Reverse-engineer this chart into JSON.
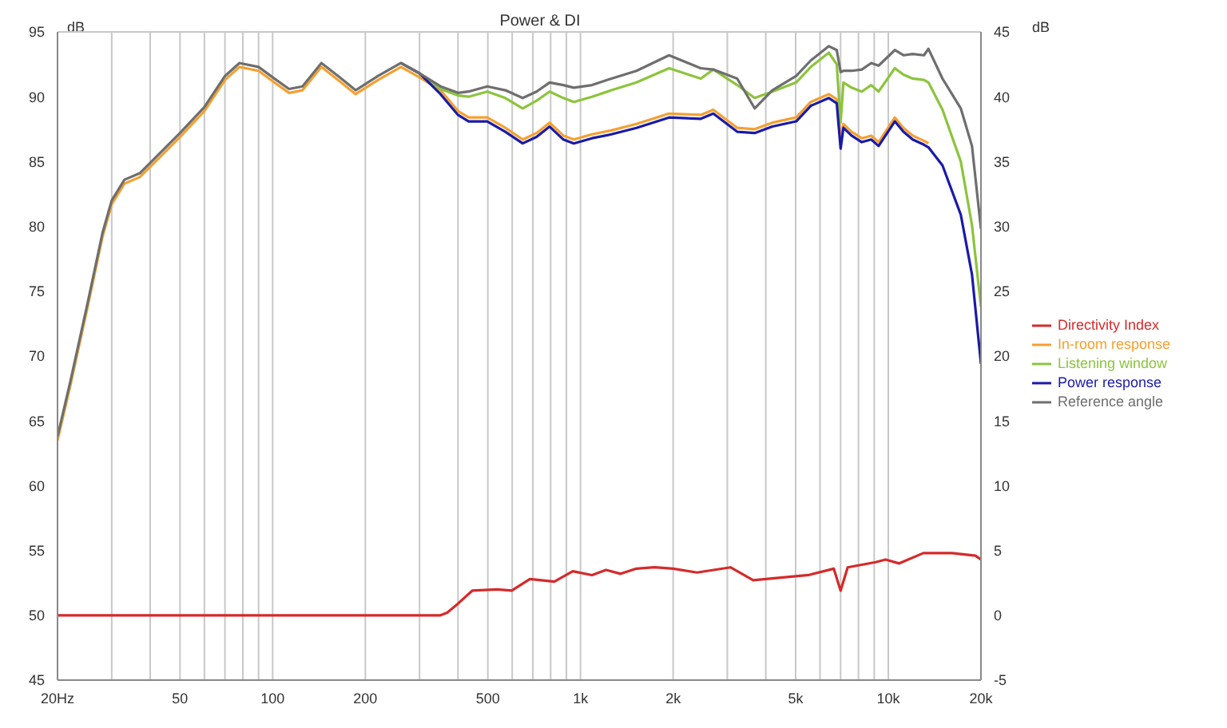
{
  "chart_data": {
    "type": "line",
    "title": "Power & DI",
    "ylabel": "dB",
    "y2label": "dB",
    "log": "x",
    "grid": true,
    "legend": "right",
    "marker": "none",
    "line_style": "solid",
    "xlim": [
      20,
      20000
    ],
    "ylim": [
      45,
      95
    ],
    "y2lim": [
      -5,
      45
    ],
    "xticks": [
      {
        "value": 20,
        "label": "20Hz"
      },
      {
        "value": 30,
        "label": null
      },
      {
        "value": 40,
        "label": null
      },
      50,
      {
        "value": 60,
        "label": null
      },
      {
        "value": 70,
        "label": null
      },
      {
        "value": 80,
        "label": null
      },
      {
        "value": 90,
        "label": null
      },
      100,
      200,
      {
        "value": 300,
        "label": null
      },
      {
        "value": 400,
        "label": null
      },
      500,
      {
        "value": 600,
        "label": null
      },
      {
        "value": 700,
        "label": null
      },
      {
        "value": 800,
        "label": null
      },
      {
        "value": 900,
        "label": null
      },
      {
        "value": 1000,
        "label": "1k"
      },
      {
        "value": 2000,
        "label": "2k"
      },
      {
        "value": 3000,
        "label": null
      },
      {
        "value": 4000,
        "label": null
      },
      {
        "value": 5000,
        "label": "5k"
      },
      {
        "value": 6000,
        "label": null
      },
      {
        "value": 7000,
        "label": null
      },
      {
        "value": 8000,
        "label": null
      },
      {
        "value": 9000,
        "label": null
      },
      {
        "value": 10000,
        "label": "10k"
      },
      {
        "value": 20000,
        "label": "20k"
      }
    ],
    "yticks": [
      45,
      50,
      55,
      60,
      65,
      70,
      75,
      80,
      85,
      90,
      95
    ],
    "y2ticks": [
      -5,
      0,
      5,
      10,
      15,
      20,
      25,
      30,
      35,
      40,
      45
    ],
    "x": [
      20,
      22,
      25,
      28,
      30,
      33,
      37,
      42,
      50,
      60,
      70,
      78,
      90,
      100,
      113,
      125,
      144,
      165,
      186,
      220,
      261,
      300,
      351,
      400,
      433,
      498,
      570,
      649,
      720,
      794,
      880,
      951,
      1090,
      1260,
      1520,
      1940,
      2460,
      2700,
      3230,
      3680,
      4200,
      5020,
      5600,
      6410,
      6800,
      7000,
      7150,
      7600,
      8200,
      8800,
      9300,
      10500,
      11200,
      12000,
      13060,
      13500,
      15000,
      17200,
      18700,
      20000
    ],
    "series": [
      {
        "name": "Directivity Index",
        "color": "#d42a2a",
        "axis": "y2",
        "x": [
          20,
          100,
          300,
          351,
          369,
          400,
          445,
          537,
          598,
          685,
          822,
          944,
          1090,
          1210,
          1350,
          1520,
          1740,
          2000,
          2390,
          3070,
          3640,
          4470,
          5500,
          6650,
          7000,
          7380,
          9100,
          9800,
          10850,
          13000,
          16100,
          19200,
          20000
        ],
        "values": [
          0,
          0,
          0,
          0,
          0.2,
          0.9,
          1.9,
          2.0,
          1.9,
          2.8,
          2.6,
          3.4,
          3.1,
          3.5,
          3.2,
          3.6,
          3.7,
          3.6,
          3.3,
          3.7,
          2.7,
          2.9,
          3.1,
          3.6,
          1.9,
          3.7,
          4.1,
          4.3,
          4.0,
          4.8,
          4.8,
          4.6,
          4.3
        ]
      },
      {
        "name": "In-room response",
        "color": "#f5a030",
        "values": [
          63.5,
          67.7,
          73.7,
          79.2,
          81.7,
          83.3,
          83.8,
          85.1,
          86.9,
          88.9,
          91.3,
          92.3,
          92.0,
          91.2,
          90.3,
          90.5,
          92.3,
          91.2,
          90.2,
          91.3,
          92.3,
          91.5,
          90.5,
          88.9,
          88.4,
          88.4,
          87.6,
          86.7,
          87.2,
          88.0,
          87.0,
          86.7,
          87.1,
          87.4,
          87.9,
          88.7,
          88.6,
          89.0,
          87.6,
          87.5,
          88.0,
          88.4,
          89.6,
          90.2,
          89.8,
          86.7,
          87.9,
          87.3,
          86.8,
          87.0,
          86.5,
          88.4,
          87.6,
          87.0,
          86.6,
          86.4,
          null,
          null,
          null,
          null
        ]
      },
      {
        "name": "Listening window",
        "color": "#8cc43c",
        "values": [
          null,
          null,
          null,
          null,
          null,
          null,
          null,
          null,
          null,
          null,
          null,
          null,
          null,
          null,
          null,
          null,
          null,
          null,
          null,
          null,
          92.6,
          91.8,
          90.6,
          90.1,
          90.0,
          90.4,
          89.9,
          89.1,
          89.7,
          90.4,
          89.9,
          89.6,
          90.0,
          90.5,
          91.1,
          92.2,
          91.4,
          92.1,
          90.9,
          89.9,
          90.4,
          91.1,
          92.3,
          93.4,
          92.5,
          88.0,
          91.1,
          90.7,
          90.4,
          90.9,
          90.4,
          92.2,
          91.7,
          91.4,
          91.3,
          91.1,
          89.0,
          85.0,
          80.1,
          73.8
        ]
      },
      {
        "name": "Power response",
        "color": "#1a1aa8",
        "values": [
          null,
          null,
          null,
          null,
          null,
          null,
          null,
          null,
          null,
          null,
          null,
          null,
          null,
          null,
          null,
          null,
          null,
          null,
          null,
          null,
          92.6,
          91.8,
          90.2,
          88.6,
          88.1,
          88.1,
          87.3,
          86.4,
          86.9,
          87.7,
          86.7,
          86.4,
          86.8,
          87.1,
          87.6,
          88.4,
          88.3,
          88.7,
          87.3,
          87.2,
          87.7,
          88.1,
          89.3,
          89.9,
          89.5,
          86.0,
          87.6,
          87.0,
          86.5,
          86.7,
          86.2,
          88.1,
          87.3,
          86.7,
          86.3,
          86.1,
          84.7,
          80.9,
          76.3,
          69.4
        ]
      },
      {
        "name": "Reference angle",
        "color": "#6e6e6e",
        "values": [
          63.8,
          68,
          74,
          79.5,
          82,
          83.6,
          84.1,
          85.4,
          87.2,
          89.2,
          91.6,
          92.6,
          92.3,
          91.5,
          90.6,
          90.8,
          92.6,
          91.5,
          90.5,
          91.6,
          92.6,
          91.8,
          90.8,
          90.3,
          90.4,
          90.8,
          90.5,
          89.9,
          90.4,
          91.1,
          90.9,
          90.7,
          90.9,
          91.4,
          92.0,
          93.2,
          92.2,
          92.1,
          91.4,
          89.1,
          90.5,
          91.6,
          92.8,
          93.9,
          93.6,
          91.9,
          92.0,
          92.0,
          92.1,
          92.6,
          92.4,
          93.6,
          93.2,
          93.3,
          93.2,
          93.7,
          91.4,
          89.1,
          86.2,
          79.8
        ]
      }
    ]
  }
}
